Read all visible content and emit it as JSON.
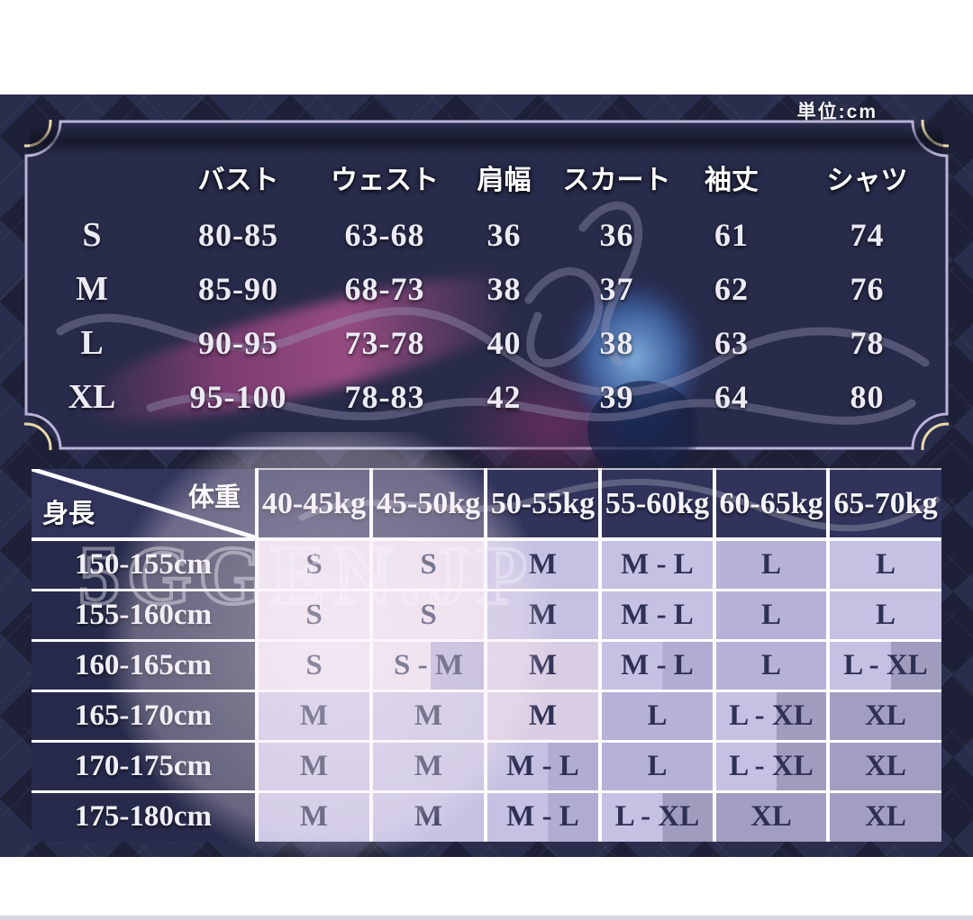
{
  "unit_note": "単位:cm",
  "watermark": "5GGEN.JP",
  "colors": {
    "background_navy": "#1d2037",
    "frame_interior": "#282b4a",
    "frame_border_lavender": "#b9b3d8",
    "frame_corner_cream": "#e9d8aa",
    "matrix_header_navy": "#31335b",
    "matrix_row_header_navy": "#272a4b",
    "matrix_grid_white": "#fdfdff",
    "cell_tone_light": "#c5c1e2",
    "cell_tone_pink": "#e9dded",
    "cell_tone_mid": "#b5b1d7",
    "cell_tone_dark": "#a29ec1",
    "light_text": "#eceaf4",
    "dark_cell_text": "#2e3054"
  },
  "size_table": {
    "columns": [
      "バスト",
      "ウェスト",
      "肩幅",
      "スカート",
      "袖丈",
      "シャツ"
    ],
    "rows": [
      {
        "size": "S",
        "values": [
          "80-85",
          "63-68",
          "36",
          "36",
          "61",
          "74"
        ]
      },
      {
        "size": "M",
        "values": [
          "85-90",
          "68-73",
          "38",
          "37",
          "62",
          "76"
        ]
      },
      {
        "size": "L",
        "values": [
          "90-95",
          "73-78",
          "40",
          "38",
          "63",
          "78"
        ]
      },
      {
        "size": "XL",
        "values": [
          "95-100",
          "78-83",
          "42",
          "39",
          "64",
          "80"
        ]
      }
    ]
  },
  "size_matrix": {
    "corner": {
      "top_right": "体重",
      "bottom_left": "身長"
    },
    "weight_columns": [
      "40-45kg",
      "45-50kg",
      "50-55kg",
      "55-60kg",
      "60-65kg",
      "65-70kg"
    ],
    "rows": [
      {
        "height": "150-155cm",
        "sizes": [
          "S",
          "S",
          "M",
          "M - L",
          "L",
          "L"
        ]
      },
      {
        "height": "155-160cm",
        "sizes": [
          "S",
          "S",
          "M",
          "M - L",
          "L",
          "L"
        ]
      },
      {
        "height": "160-165cm",
        "sizes": [
          "S",
          "S - M",
          "M",
          "M - L",
          "L",
          "L - XL"
        ]
      },
      {
        "height": "165-170cm",
        "sizes": [
          "M",
          "M",
          "M",
          "L",
          "L - XL",
          "XL"
        ]
      },
      {
        "height": "170-175cm",
        "sizes": [
          "M",
          "M",
          "M - L",
          "L",
          "L - XL",
          "XL"
        ]
      },
      {
        "height": "175-180cm",
        "sizes": [
          "M",
          "M",
          "M - L",
          "L - XL",
          "XL",
          "XL"
        ]
      }
    ],
    "cell_tones": [
      [
        "P",
        "P",
        "L",
        "L",
        "M",
        "L"
      ],
      [
        "P",
        "P",
        "L",
        "L",
        "M",
        "L"
      ],
      [
        "P",
        "P_M",
        "p",
        "L_M",
        "M",
        "L_D"
      ],
      [
        "L",
        "L",
        "p",
        "M",
        "L_D",
        "D"
      ],
      [
        "L",
        "L",
        "L_M",
        "M",
        "L_D",
        "D"
      ],
      [
        "L",
        "L",
        "L_M",
        "L_D",
        "D",
        "D"
      ]
    ]
  }
}
